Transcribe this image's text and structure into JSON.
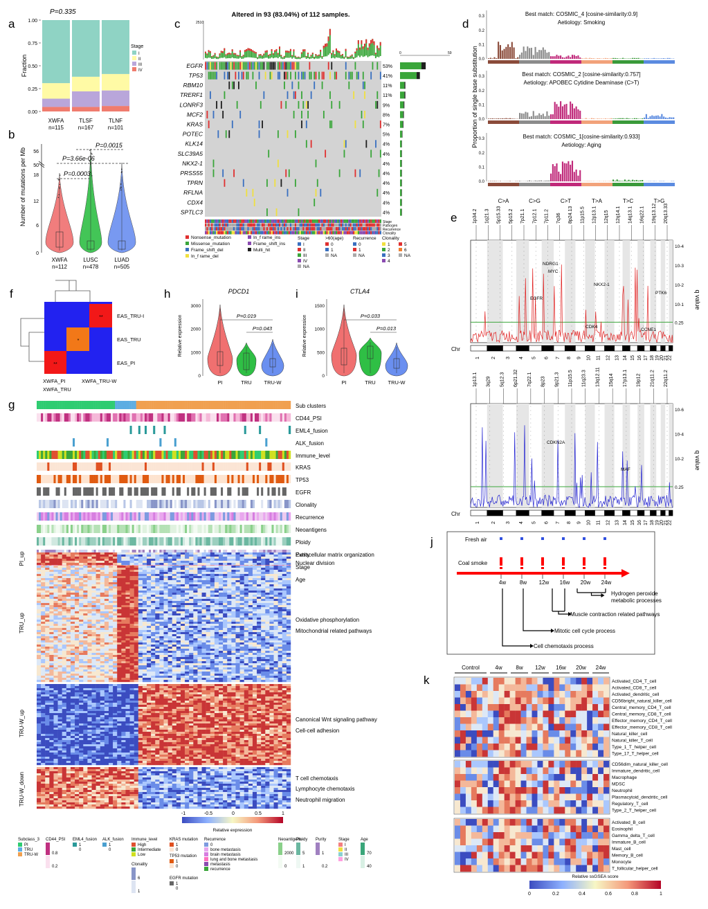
{
  "panels": {
    "a": {
      "letter": "a",
      "pvalue": "P=0.335",
      "ylabel": "Fraction",
      "legend_title": "Stage",
      "yticks": [
        "0.00",
        "0.25",
        "0.50",
        "0.75",
        "1.00"
      ],
      "legend": [
        "I",
        "II",
        "III",
        "IV"
      ],
      "groups": [
        {
          "name": "XWFA",
          "n": "n=115"
        },
        {
          "name": "TLSF",
          "n": "n=167"
        },
        {
          "name": "TLNF",
          "n": "n=101"
        }
      ]
    },
    "b": {
      "letter": "b",
      "ylabel": "Number of mutations per Mb",
      "pvals": [
        "P=0.0015",
        "P=3.66e-06",
        "P=0.0003"
      ],
      "yticks": [
        "0",
        "6",
        "12",
        "18",
        "50",
        "56"
      ],
      "groups": [
        {
          "name": "XWFA",
          "n": "n=112"
        },
        {
          "name": "LUSC",
          "n": "n=478"
        },
        {
          "name": "LUAD",
          "n": "n=505"
        }
      ]
    },
    "c": {
      "letter": "c",
      "title": "Altered in 93 (83.04%) of 112 samples.",
      "top_max": "2510",
      "side_max": "59",
      "side_min": "0",
      "genes": [
        "EGFR",
        "TP53",
        "RBM10",
        "TRERF1",
        "LONRF3",
        "MCF2",
        "KRAS",
        "POTEC",
        "KLK14",
        "SLC39A5",
        "NKX2-1",
        "PRSS55",
        "TPRN",
        "RFLNA",
        "CDX4",
        "SPTLC3"
      ],
      "pcts": [
        "53%",
        "41%",
        "11%",
        "11%",
        "9%",
        "8%",
        "7%",
        "5%",
        "4%",
        "4%",
        "4%",
        "4%",
        "4%",
        "4%",
        "4%",
        "4%"
      ],
      "tracks": [
        "Stage",
        "Pathogen",
        "Recurrence",
        "Clonality"
      ],
      "mut_legend": [
        "Nonsense_mutation",
        "Missense_mutation",
        "Frame_shift_del",
        "In_f rame_del",
        "In_f rame_ins",
        "Frame_shift_ins",
        "Multi_hit"
      ],
      "stage_title": "Stage",
      "stage_items": [
        "I",
        "II",
        "III",
        "IV",
        "NA"
      ],
      "age_title": ">60(age)",
      "age_items": [
        "0",
        "1",
        "NA"
      ],
      "rec_title": "Recurrence",
      "rec_items": [
        "0",
        "1",
        "NA"
      ],
      "clon_title": "Clonality",
      "clon_items": [
        "1",
        "2",
        "3",
        "4",
        "5",
        "6",
        "NA"
      ]
    },
    "d": {
      "letter": "d",
      "ylabel": "Proportion of single base substitution",
      "yticks": [
        "0.0",
        "0.1",
        "0.2",
        "0.3"
      ],
      "sigs": [
        {
          "l1": "Best match: COSMIC_4 [cosine-similarity:0.9]",
          "l2": "Aetiology: Smoking"
        },
        {
          "l1": "Best match: COSMIC_2 [cosine-similarity:0.757]",
          "l2": "Aetiology: APOBEC Cytidine Deaminase (C>T)"
        },
        {
          "l1": "Best match: COSMIC_1[cosine-similarity:0.933]",
          "l2": "Aetiology: Aging"
        }
      ],
      "xcats": [
        "C>A",
        "C>G",
        "C>T",
        "T>A",
        "T>C",
        "T>G"
      ],
      "colors": [
        "#8b4b3a",
        "#8c8c8c",
        "#c0297a",
        "#f2a27a",
        "#3a9a3a",
        "#5b8be0"
      ]
    },
    "e": {
      "letter": "e",
      "chr_label": "Chr",
      "qlabel": "q value",
      "amp_labels": [
        "1p34.2",
        "1q21.3",
        "5p15.33",
        "5p15.2",
        "7p21.1",
        "7p12.1",
        "7p11.2",
        "7q36",
        "8p24.13",
        "11p15.5",
        "12p13.1",
        "12q15",
        "12q14.1",
        "14q13.1",
        "16q22.1",
        "19q13.12",
        "20q13.33"
      ],
      "amp_genes": [
        "NDRG1",
        "MYC",
        "EGFR",
        "NKX2-1",
        "CDK4",
        "CCNE1",
        "PTK6"
      ],
      "amp_q": [
        "10-4",
        "10-3",
        "10-2",
        "10-1",
        "0.25"
      ],
      "del_labels": [
        "1p13.1",
        "3q29",
        "5q12.3",
        "6p21.32",
        "7q22.1",
        "8p23",
        "9p21.3",
        "11p15.5",
        "11q23.3",
        "13q12.11",
        "15q14",
        "17p13.1",
        "19p12",
        "21q11.2",
        "22q11.2"
      ],
      "del_genes": [
        "CDKN2A",
        "MAF"
      ],
      "del_q": [
        "10-6",
        "10-4",
        "10-2",
        "0.25"
      ],
      "chrs": [
        "1",
        "2",
        "3",
        "4",
        "5",
        "6",
        "7",
        "8",
        "9",
        "10",
        "11",
        "12",
        "13",
        "14",
        "15",
        "16",
        "17",
        "18",
        "19",
        "20",
        "21",
        "22"
      ]
    },
    "f": {
      "letter": "f",
      "rows": [
        "EAS_TRU-I",
        "EAS_TRU",
        "EAS_PI"
      ],
      "cols": [
        "XWFA_PI",
        "XWFA_TRU-W"
      ],
      "xsub": "XWFA_TRU",
      "stars": [
        "**",
        "*",
        "**"
      ]
    },
    "h": {
      "letter": "h",
      "gene": "PDCD1",
      "ylabel": "Relative expression",
      "pvals": [
        "P=0.019",
        "P=0.043"
      ],
      "yticks": [
        "0",
        "1000",
        "2000",
        "3000"
      ],
      "groups": [
        "PI",
        "TRU",
        "TRU-W"
      ]
    },
    "i": {
      "letter": "i",
      "gene": "CTLA4",
      "ylabel": "Relative expression",
      "pvals": [
        "P=0.033",
        "P=0.013"
      ],
      "yticks": [
        "0",
        "500",
        "1000",
        "1500"
      ],
      "groups": [
        "PI",
        "TRU",
        "TRU-W"
      ]
    },
    "g": {
      "letter": "g",
      "tracks": [
        "Sub clusters",
        "CD44_PSI",
        "EML4_fusion",
        "ALK_fusion",
        "Immune_level",
        "KRAS",
        "TP53",
        "EGFR",
        "Clonality",
        "Recurrence",
        "Neoantigens",
        "Ploidy",
        "Purity",
        "Stage",
        "Age"
      ],
      "blocks": [
        {
          "name": "PI_up",
          "terms": [
            "Extracellular matrix organization",
            "Nuclear division"
          ]
        },
        {
          "name": "TRU_up",
          "terms": [
            "Oxidative phosphorylation",
            "Mitochondrial related pathways"
          ]
        },
        {
          "name": "TRU-W_up",
          "terms": [
            "Canonical Wnt signaling pathway",
            "Cell-cell adhesion"
          ]
        },
        {
          "name": "TRU-W_down",
          "terms": [
            "T cell chemotaxis",
            "Lymphocyte chemotaxis",
            "Neutrophil migration"
          ]
        }
      ],
      "scale_ticks": [
        "-1",
        "-0.5",
        "0",
        "0.5",
        "1"
      ],
      "scale_label": "Relative expression",
      "legend": {
        "sub": {
          "title": "Subclass_3",
          "items": [
            "PI",
            "TRU",
            "TRU-W"
          ]
        },
        "cd44": {
          "title": "CD44_PSI",
          "items": [
            "0.8",
            "0.2"
          ]
        },
        "eml4": {
          "title": "EML4_fusion",
          "items": [
            "1",
            "0"
          ]
        },
        "alk": {
          "title": "ALK_fusion",
          "items": [
            "1",
            "0"
          ]
        },
        "immune": {
          "title": "Immune_level",
          "items": [
            "High",
            "Intermediate",
            "Low"
          ]
        },
        "clon": {
          "title": "Clonality",
          "items": [
            "6",
            "1"
          ]
        },
        "kras": {
          "title": "KRAS mutation",
          "items": [
            "1",
            "0"
          ]
        },
        "tp53": {
          "title": "TP53 mutation",
          "items": [
            "1",
            "0"
          ]
        },
        "egfr": {
          "title": "EGFR mutation",
          "items": [
            "1",
            "0"
          ]
        },
        "rec": {
          "title": "Recurrence",
          "items": [
            "0",
            "bone metastasis",
            "brain metastasis",
            "lung and bone metastasis",
            "metastasis",
            "recurrence"
          ]
        },
        "neo": {
          "title": "Neoantigens",
          "items": [
            "2000",
            "0"
          ]
        },
        "ploidy": {
          "title": "Ploidy",
          "items": [
            "5",
            "1"
          ]
        },
        "purity": {
          "title": "Purity",
          "items": [
            "1",
            "0.2"
          ]
        },
        "stage": {
          "title": "Stage",
          "items": [
            "I",
            "II",
            "III",
            "IV"
          ]
        },
        "age": {
          "title": "Age",
          "items": [
            "70",
            "40"
          ]
        }
      }
    },
    "j": {
      "letter": "j",
      "fresh": "Fresh air",
      "coal": "Coal smoke",
      "weeks": [
        "4w",
        "8w",
        "12w",
        "16w",
        "20w",
        "24w"
      ],
      "processes": [
        "Hydrogen peroxide metabolic processes",
        "Muscle contraction related pathways",
        "Mitotic cell cycle process",
        "Cell chemotaxis process"
      ]
    },
    "k": {
      "letter": "k",
      "groups": [
        "Control",
        "4w",
        "8w",
        "12w",
        "16w",
        "20w",
        "24w"
      ],
      "rows1": [
        "Activated_CD4_T_cell",
        "Activated_CD8_T_cell",
        "Activated_dendritic_cell",
        "CD56bright_natural_killer_cell",
        "Central_memory_CD4_T_cell",
        "Central_memory_CD8_T_cell",
        "Effector_memory_CD4_T_cell",
        "Effector_memory_CD8_T_cell",
        "Natural_killer_cell",
        "Natural_killer_T_cell",
        "Type_1_T_helper_cell",
        "Type_17_T_helper_cell"
      ],
      "rows2": [
        "CD56dim_natural_killer_cell",
        "Immature_dendritic_cell",
        "Macrophage",
        "MDSC",
        "Neutrophil",
        "Plasmacytoid_dendritic_cell",
        "Regulatory_T_cell",
        "Type_2_T_helper_cell"
      ],
      "rows3": [
        "Activated_B_cell",
        "Eosinophil",
        "Gamma_delta_T_cell",
        "Immature_B_cell",
        "Mast_cell",
        "Memory_B_cell",
        "Monocyte",
        "T_follicular_helper_cell"
      ],
      "scale_label": "Relative ssGSEA score",
      "scale_ticks": [
        "0",
        "0.2",
        "0.4",
        "0.6",
        "0.8",
        "1"
      ]
    }
  }
}
